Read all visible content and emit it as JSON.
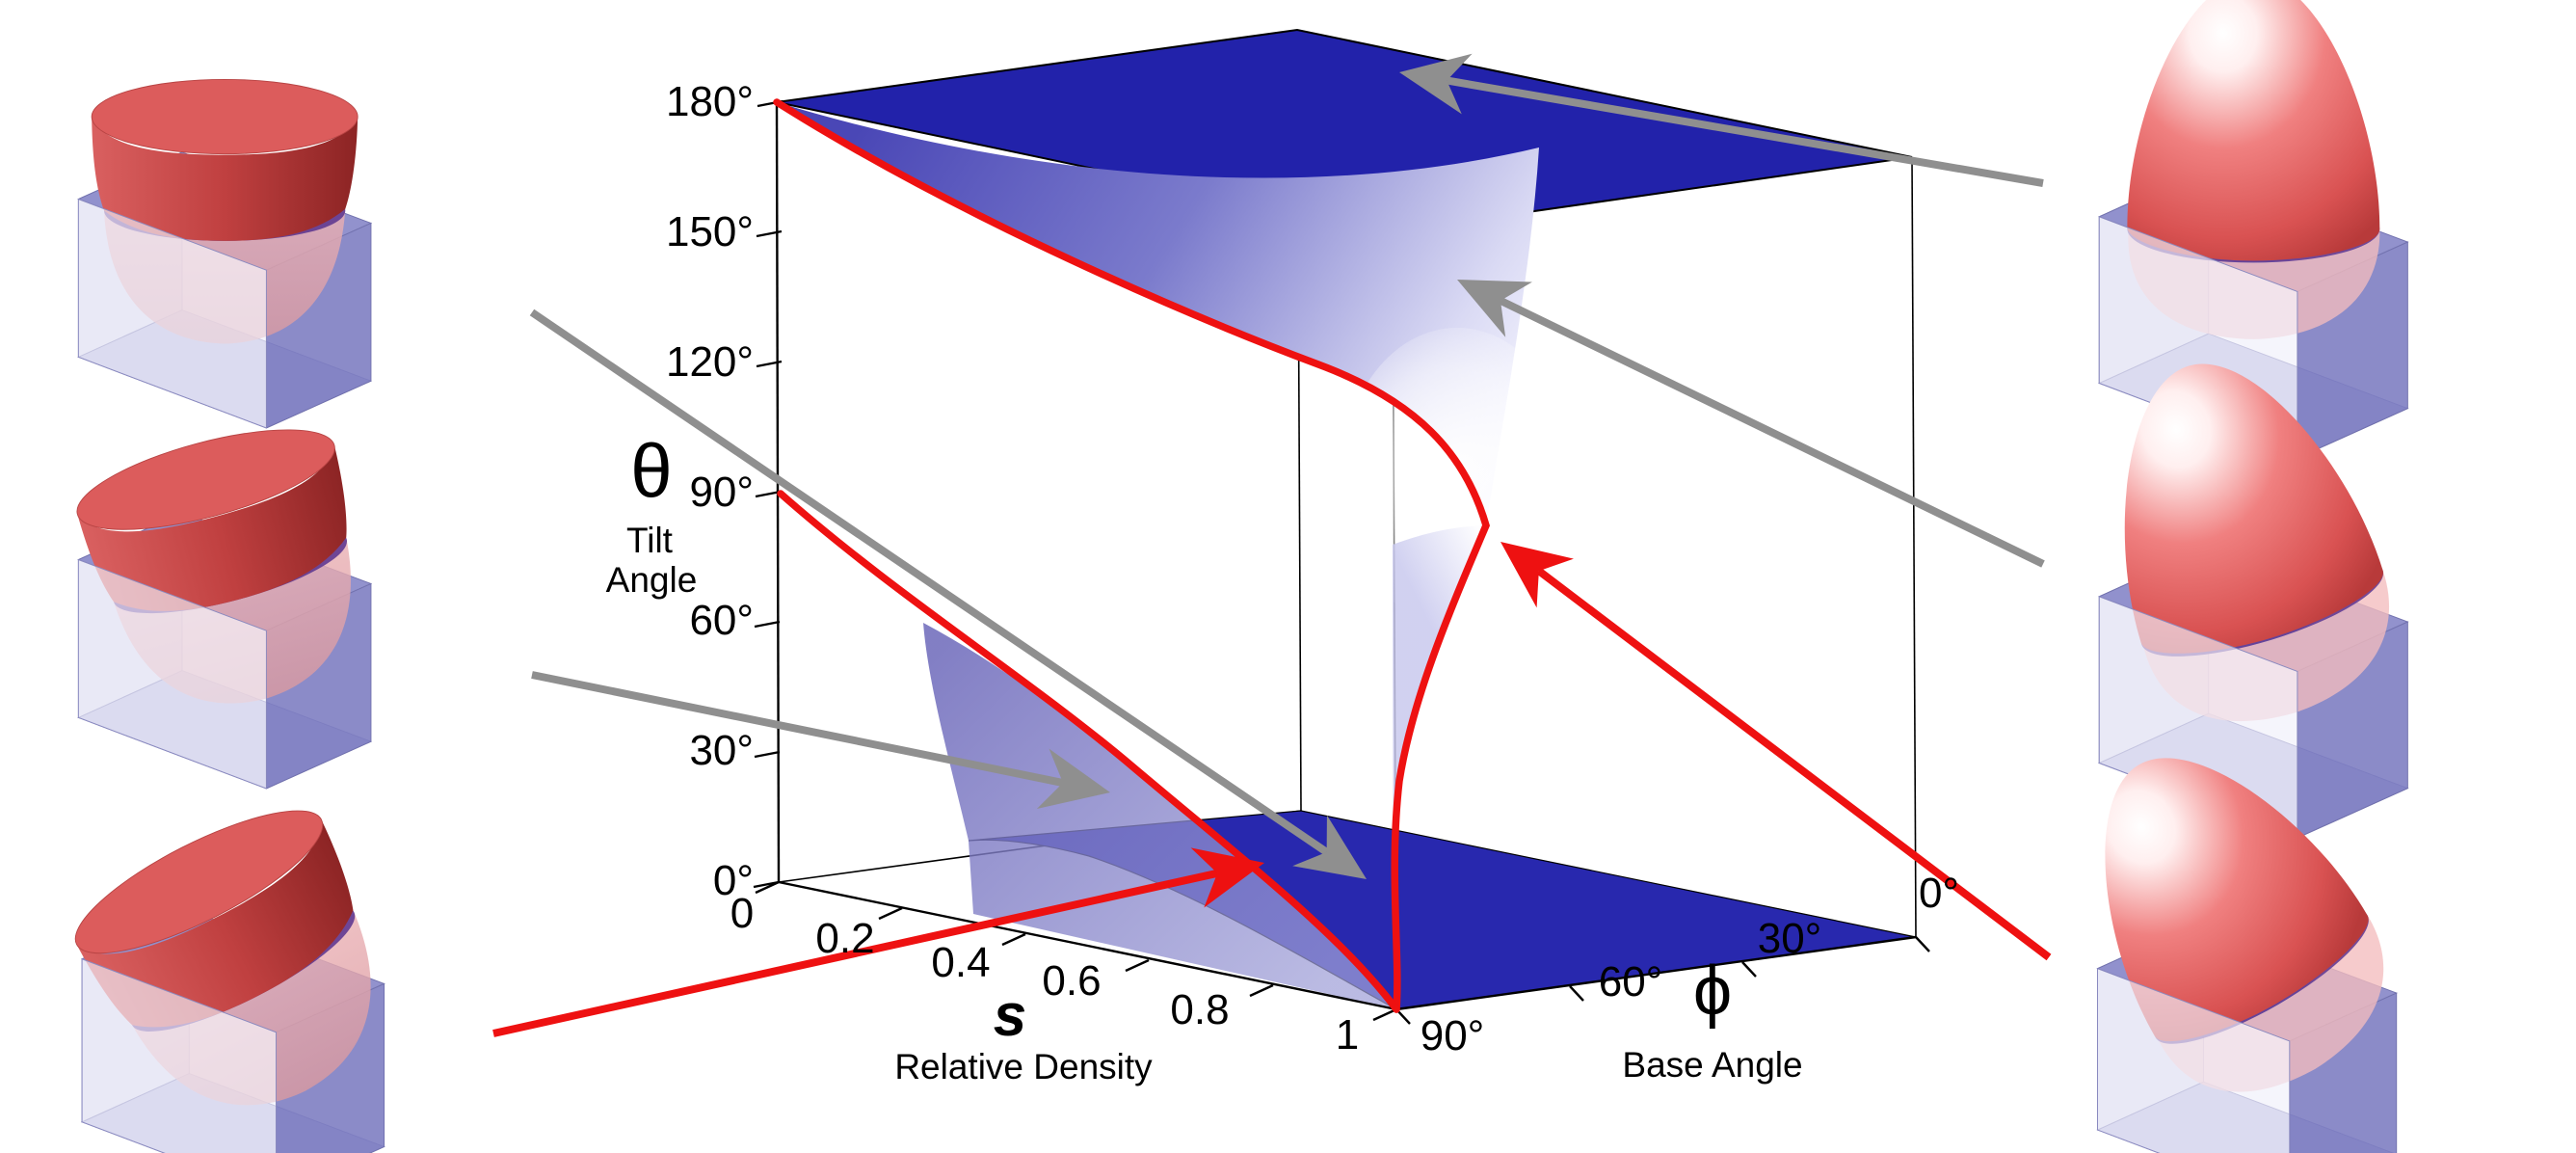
{
  "figure": {
    "kind": "3d-phase-diagram",
    "background": "#ffffff"
  },
  "axes": {
    "theta": {
      "symbol": "θ",
      "title_line1": "Tilt",
      "title_line2": "Angle",
      "tick_labels": [
        "180°",
        "150°",
        "120°",
        "90°",
        "60°",
        "30°",
        "0°"
      ]
    },
    "s": {
      "symbol": "s",
      "title": "Relative Density",
      "tick_labels": [
        "0",
        "0.2",
        "0.4",
        "0.6",
        "0.8",
        "1"
      ]
    },
    "phi": {
      "symbol": "ϕ",
      "title": "Base Angle",
      "tick_labels": [
        "90°",
        "60°",
        "30°",
        "0°"
      ]
    }
  },
  "colors": {
    "plane_blue": "#2222AA",
    "bottom_region_blue": "#2828AE",
    "wall_blue": "#6C68BA",
    "critical_curve_red": "#EE1111",
    "arrow_gray": "#8F8F8F",
    "inset_box_blue": "#8C8CCA",
    "inset_shape_red": "#D95252",
    "intersection_band_purple": "#5C3590"
  },
  "insets": {
    "left": [
      {
        "name": "paraboloid-pit-upright"
      },
      {
        "name": "paraboloid-pit-tilted"
      },
      {
        "name": "paraboloid-pit-strongly-tilted"
      }
    ],
    "right": [
      {
        "name": "paraboloid-bump-upright"
      },
      {
        "name": "paraboloid-bump-tilted"
      },
      {
        "name": "paraboloid-bump-strongly-tilted"
      }
    ]
  },
  "chart_data": {
    "type": "area",
    "title": "",
    "xlabel": "s Relative Density",
    "ylabel": "θ Tilt Angle",
    "zlabel": "ϕ Base Angle",
    "axes": {
      "theta_deg": {
        "range": [
          0,
          180
        ],
        "ticks": [
          0,
          30,
          60,
          90,
          120,
          150,
          180
        ]
      },
      "s": {
        "range": [
          0,
          1
        ],
        "ticks": [
          0,
          0.2,
          0.4,
          0.6,
          0.8,
          1
        ]
      },
      "phi_deg": {
        "range": [
          0,
          90
        ],
        "ticks": [
          0,
          30,
          60,
          90
        ]
      }
    },
    "regions": [
      {
        "name": "upper-plane",
        "location": "theta = 180 deg plane, all s and phi",
        "fill": "#2222AA"
      },
      {
        "name": "lower-plane-region",
        "location": "theta = 0 deg plane, right of red critical curve",
        "fill": "#2828AE"
      },
      {
        "name": "wall-region",
        "location": "phi = 90 deg plane, below red critical curve",
        "fill": "#6C68BA"
      },
      {
        "name": "critical-surface-with-cusp",
        "location": "near s = 1, between upper plane and cusp",
        "fill": "gradient #4A47B6 to #FFFFFF"
      }
    ],
    "series": [
      {
        "name": "critical-curve-wall-phi90",
        "plane": "phi = 90 deg",
        "points_s_theta_deg": [
          [
            0,
            90
          ],
          [
            0.2,
            72
          ],
          [
            0.4,
            55
          ],
          [
            0.6,
            38
          ],
          [
            0.8,
            19
          ],
          [
            1,
            0
          ]
        ]
      },
      {
        "name": "critical-curve-surface-upper-branch",
        "plane": "near s = 1",
        "points_theta_deg": [
          180,
          158,
          135,
          112,
          95,
          82
        ]
      },
      {
        "name": "critical-curve-surface-lower-branch",
        "plane": "near s = 1",
        "points_theta_deg": [
          82,
          60,
          38,
          18,
          0
        ]
      }
    ],
    "legend": "none",
    "grid": false
  }
}
